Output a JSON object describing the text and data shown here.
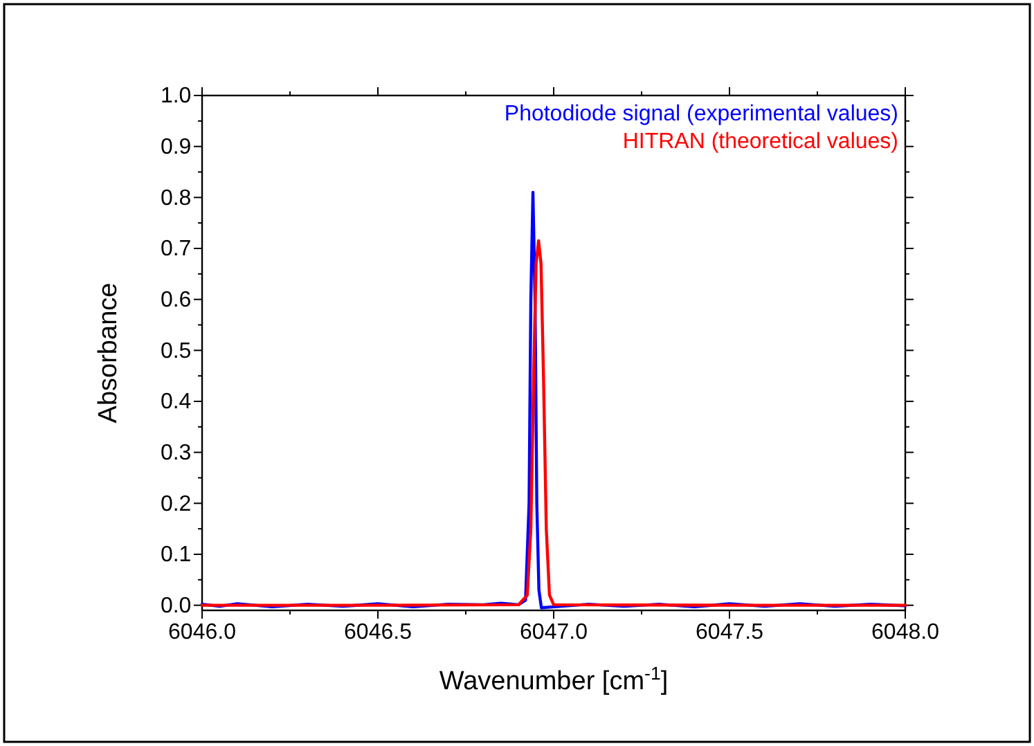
{
  "chart_data": {
    "type": "line",
    "xlabel": "Wavenumber [cm$^{-1}$]",
    "ylabel": "Absorbance",
    "xlim": [
      6046.0,
      6048.0
    ],
    "xticks": [
      {
        "value": 6046.0,
        "label": "6046.0"
      },
      {
        "value": 6046.25,
        "label": null
      },
      {
        "value": 6046.5,
        "label": "6046.5"
      },
      {
        "value": 6046.75,
        "label": null
      },
      {
        "value": 6047.0,
        "label": "6047.0"
      },
      {
        "value": 6047.25,
        "label": null
      },
      {
        "value": 6047.5,
        "label": "6047.5"
      },
      {
        "value": 6047.75,
        "label": null
      },
      {
        "value": 6048.0,
        "label": "6048.0"
      }
    ],
    "ylim": [
      -0.01,
      1.0
    ],
    "yticks": [
      {
        "value": 0,
        "label": "0.0"
      },
      {
        "value": 0.05,
        "label": null
      },
      {
        "value": 0.1,
        "label": "0.1"
      },
      {
        "value": 0.15,
        "label": null
      },
      {
        "value": 0.2,
        "label": "0.2"
      },
      {
        "value": 0.25,
        "label": null
      },
      {
        "value": 0.3,
        "label": "0.3"
      },
      {
        "value": 0.35,
        "label": null
      },
      {
        "value": 0.4,
        "label": "0.4"
      },
      {
        "value": 0.45,
        "label": null
      },
      {
        "value": 0.5,
        "label": "0.5"
      },
      {
        "value": 0.55,
        "label": null
      },
      {
        "value": 0.6,
        "label": "0.6"
      },
      {
        "value": 0.65,
        "label": null
      },
      {
        "value": 0.7,
        "label": "0.7"
      },
      {
        "value": 0.75,
        "label": null
      },
      {
        "value": 0.8,
        "label": "0.8"
      },
      {
        "value": 0.85,
        "label": null
      },
      {
        "value": 0.9,
        "label": "0.9"
      },
      {
        "value": 0.95,
        "label": null
      },
      {
        "value": 1.0,
        "label": "1.0"
      }
    ],
    "grid": false,
    "legend": "top right",
    "marker": "none",
    "line_style": "solid",
    "series": [
      {
        "name": "Photodiode signal (experimental values)",
        "color": "#0000ff",
        "x": [
          6046.0,
          6046.05,
          6046.1,
          6046.2,
          6046.3,
          6046.4,
          6046.5,
          6046.6,
          6046.7,
          6046.8,
          6046.85,
          6046.9,
          6046.92,
          6046.93,
          6046.935,
          6046.941,
          6046.947,
          6046.952,
          6046.958,
          6046.965,
          6047.0,
          6047.1,
          6047.2,
          6047.3,
          6047.4,
          6047.5,
          6047.6,
          6047.7,
          6047.8,
          6047.9,
          6048.0
        ],
        "values": [
          0.002,
          -0.002,
          0.003,
          -0.003,
          0.002,
          -0.002,
          0.003,
          -0.003,
          0.002,
          0.001,
          0.004,
          0.001,
          0.01,
          0.2,
          0.6,
          0.81,
          0.6,
          0.2,
          0.03,
          -0.005,
          -0.003,
          0.002,
          -0.002,
          0.002,
          -0.003,
          0.003,
          -0.002,
          0.003,
          -0.002,
          0.002,
          -0.001
        ]
      },
      {
        "name": "HITRAN (theoretical values)",
        "color": "#ff0000",
        "x": [
          6046.0,
          6046.5,
          6046.9,
          6046.925,
          6046.935,
          6046.943,
          6046.95,
          6046.957,
          6046.964,
          6046.971,
          6046.979,
          6046.988,
          6047.0,
          6047.5,
          6048.0
        ],
        "values": [
          0,
          0,
          0.001,
          0.02,
          0.15,
          0.45,
          0.67,
          0.715,
          0.67,
          0.45,
          0.15,
          0.02,
          0.001,
          0,
          0
        ]
      }
    ]
  }
}
